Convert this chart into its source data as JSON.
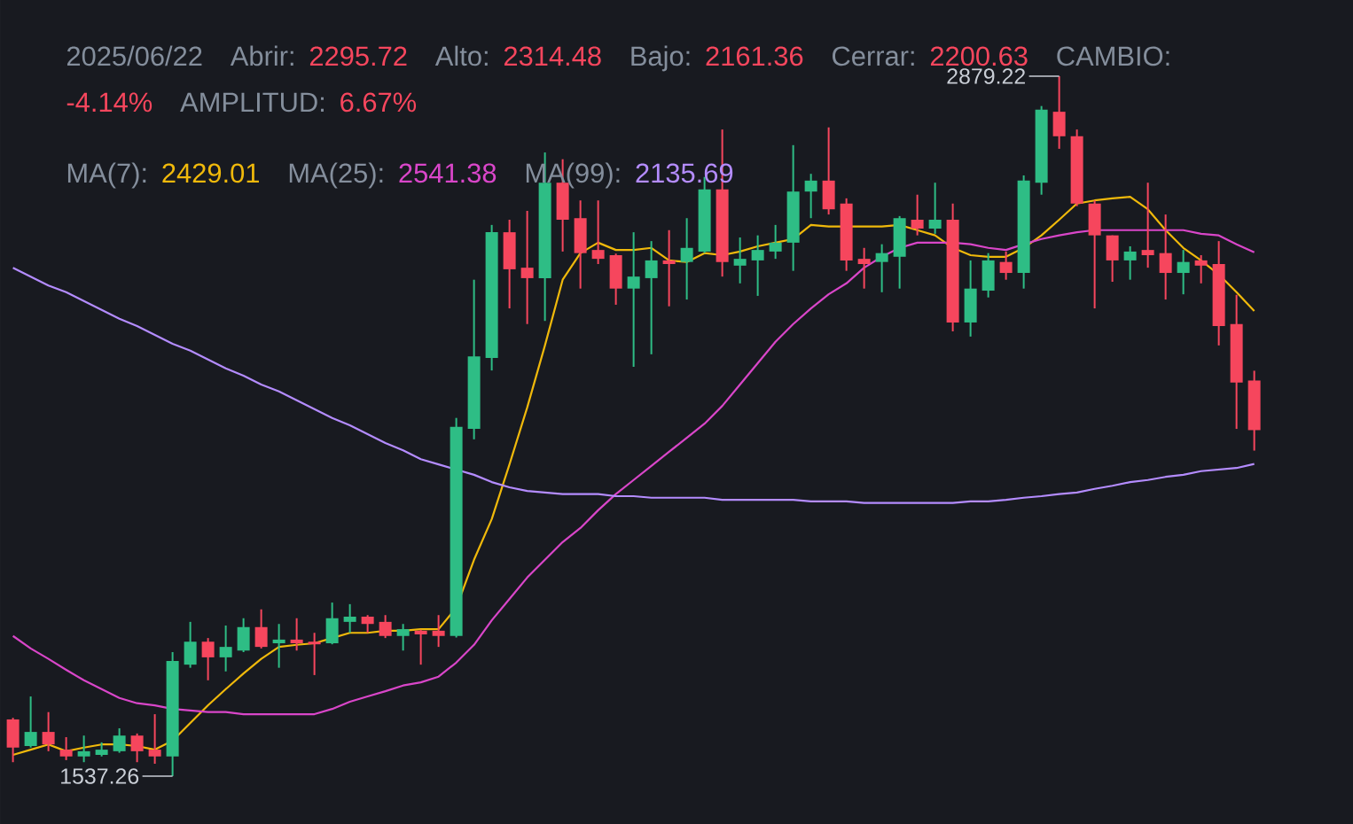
{
  "chart_data": {
    "type": "candlestick",
    "categories": [
      null,
      null,
      null,
      null,
      null,
      null,
      null,
      null,
      null,
      null,
      null,
      null,
      null,
      null,
      null,
      null,
      null,
      null,
      null,
      null,
      null,
      null,
      null,
      null,
      null,
      null,
      null,
      null,
      null,
      null,
      null,
      null,
      null,
      null,
      null,
      null,
      null,
      null,
      null,
      null,
      null,
      null,
      null,
      null,
      null,
      null,
      null,
      null,
      null,
      null,
      null,
      null,
      null,
      null,
      null,
      null,
      null,
      null,
      null,
      null,
      null,
      null,
      null,
      null,
      null,
      null,
      null,
      null,
      null,
      null,
      null
    ],
    "ohlc": [
      [
        1646,
        1649,
        1564,
        1592
      ],
      [
        1595,
        1690,
        1592,
        1622
      ],
      [
        1622,
        1660,
        1585,
        1598
      ],
      [
        1588,
        1612,
        1568,
        1575
      ],
      [
        1575,
        1615,
        1564,
        1585
      ],
      [
        1578,
        1602,
        1575,
        1588
      ],
      [
        1585,
        1629,
        1582,
        1615
      ],
      [
        1615,
        1619,
        1564,
        1585
      ],
      [
        1588,
        1656,
        1561,
        1575
      ],
      [
        1575,
        1775,
        1537.26,
        1758
      ],
      [
        1751,
        1833,
        1745,
        1795
      ],
      [
        1795,
        1802,
        1721,
        1765
      ],
      [
        1765,
        1826,
        1738,
        1785
      ],
      [
        1778,
        1840,
        1775,
        1823
      ],
      [
        1823,
        1857,
        1782,
        1785
      ],
      [
        1792,
        1829,
        1745,
        1799
      ],
      [
        1799,
        1840,
        1778,
        1792
      ],
      [
        1795,
        1812,
        1731,
        1790
      ],
      [
        1792,
        1870,
        1790,
        1840
      ],
      [
        1833,
        1867,
        1812,
        1843
      ],
      [
        1843,
        1846,
        1812,
        1829
      ],
      [
        1833,
        1846,
        1802,
        1806
      ],
      [
        1806,
        1829,
        1778,
        1819
      ],
      [
        1816,
        1818,
        1751,
        1809
      ],
      [
        1816,
        1846,
        1785,
        1806
      ],
      [
        1806,
        2224,
        1803,
        2207
      ],
      [
        2203,
        2489,
        2183,
        2342
      ],
      [
        2339,
        2594,
        2315,
        2580
      ],
      [
        2580,
        2604,
        2434,
        2509
      ],
      [
        2512,
        2621,
        2404,
        2492
      ],
      [
        2492,
        2733,
        2410,
        2675
      ],
      [
        2675,
        2720,
        2543,
        2604
      ],
      [
        2607,
        2641,
        2472,
        2540
      ],
      [
        2546,
        2641,
        2519,
        2529
      ],
      [
        2536,
        2539,
        2441,
        2472
      ],
      [
        2472,
        2580,
        2322,
        2495
      ],
      [
        2492,
        2563,
        2346,
        2526
      ],
      [
        2526,
        2584,
        2438,
        2519
      ],
      [
        2523,
        2607,
        2451,
        2550
      ],
      [
        2543,
        2686,
        2540,
        2662
      ],
      [
        2662,
        2777,
        2495,
        2523
      ],
      [
        2516,
        2570,
        2482,
        2529
      ],
      [
        2526,
        2574,
        2458,
        2546
      ],
      [
        2543,
        2594,
        2529,
        2560
      ],
      [
        2560,
        2747,
        2506,
        2658
      ],
      [
        2658,
        2692,
        2607,
        2679
      ],
      [
        2679,
        2781,
        2614,
        2624
      ],
      [
        2635,
        2645,
        2506,
        2526
      ],
      [
        2529,
        2550,
        2472,
        2519
      ],
      [
        2523,
        2557,
        2465,
        2540
      ],
      [
        2533,
        2611,
        2472,
        2607
      ],
      [
        2604,
        2652,
        2574,
        2587
      ],
      [
        2587,
        2675,
        2577,
        2604
      ],
      [
        2604,
        2635,
        2390,
        2407
      ],
      [
        2407,
        2526,
        2380,
        2472
      ],
      [
        2468,
        2540,
        2455,
        2526
      ],
      [
        2523,
        2543,
        2489,
        2502
      ],
      [
        2502,
        2689,
        2472,
        2679
      ],
      [
        2675,
        2822,
        2652,
        2815
      ],
      [
        2811,
        2879.22,
        2740,
        2764
      ],
      [
        2764,
        2777,
        2630,
        2635
      ],
      [
        2635,
        2641,
        2434,
        2574
      ],
      [
        2574,
        2574,
        2485,
        2526
      ],
      [
        2526,
        2553,
        2489,
        2543
      ],
      [
        2546,
        2675,
        2512,
        2536
      ],
      [
        2540,
        2614,
        2451,
        2502
      ],
      [
        2502,
        2546,
        2461,
        2523
      ],
      [
        2526,
        2536,
        2482,
        2516
      ],
      [
        2519,
        2563,
        2363,
        2400
      ],
      [
        2404,
        2460,
        2203,
        2292
      ],
      [
        2295.72,
        2314.48,
        2161.36,
        2200.63
      ]
    ],
    "series": [
      {
        "type": "line",
        "color": "#f0b90b",
        "values": [
          1578,
          1588,
          1598,
          1585,
          1592,
          1598,
          1598,
          1595,
          1588,
          1605,
          1639,
          1673,
          1704,
          1734,
          1762,
          1785,
          1789,
          1792,
          1802,
          1812,
          1812,
          1816,
          1816,
          1819,
          1819,
          1860,
          1952,
          2030,
          2135,
          2244,
          2363,
          2489,
          2540,
          2560,
          2546,
          2546,
          2550,
          2526,
          2523,
          2540,
          2536,
          2543,
          2553,
          2560,
          2567,
          2594,
          2591,
          2591,
          2591,
          2591,
          2594,
          2584,
          2574,
          2550,
          2536,
          2533,
          2533,
          2550,
          2574,
          2604,
          2635,
          2641,
          2645,
          2648,
          2624,
          2584,
          2550,
          2526,
          2499,
          2465,
          2429.01
        ]
      },
      {
        "type": "line",
        "color": "#d946c9",
        "values": [
          1806,
          1782,
          1762,
          1741,
          1721,
          1704,
          1687,
          1677,
          1673,
          1666,
          1663,
          1660,
          1660,
          1656,
          1656,
          1656,
          1656,
          1656,
          1666,
          1680,
          1690,
          1700,
          1711,
          1717,
          1728,
          1755,
          1789,
          1836,
          1877,
          1918,
          1952,
          1986,
          2013,
          2047,
          2078,
          2105,
          2132,
          2159,
          2186,
          2213,
          2247,
          2288,
          2329,
          2370,
          2404,
          2434,
          2461,
          2482,
          2512,
          2533,
          2550,
          2560,
          2560,
          2560,
          2557,
          2550,
          2546,
          2557,
          2567,
          2574,
          2580,
          2584,
          2584,
          2584,
          2584,
          2584,
          2584,
          2577,
          2574,
          2557,
          2541.38
        ]
      },
      {
        "type": "line",
        "color": "#b48cff",
        "values": [
          2512,
          2495,
          2478,
          2465,
          2448,
          2431,
          2414,
          2400,
          2383,
          2366,
          2353,
          2336,
          2319,
          2305,
          2288,
          2275,
          2258,
          2241,
          2224,
          2210,
          2193,
          2176,
          2162,
          2145,
          2135,
          2125,
          2115,
          2101,
          2091,
          2084,
          2081,
          2078,
          2078,
          2078,
          2074,
          2074,
          2071,
          2071,
          2071,
          2071,
          2067,
          2067,
          2067,
          2067,
          2067,
          2064,
          2064,
          2064,
          2061,
          2061,
          2061,
          2061,
          2061,
          2061,
          2064,
          2064,
          2067,
          2071,
          2074,
          2078,
          2081,
          2088,
          2094,
          2101,
          2105,
          2111,
          2115,
          2122,
          2125,
          2128,
          2135.69
        ]
      }
    ],
    "annotations": [
      "2025/06/22",
      "Abrir:",
      "2295.72",
      "Alto:",
      "2314.48",
      "Bajo:",
      "2161.36",
      "Cerrar:",
      "2200.63",
      "CAMBIO:",
      "-4.14%",
      "AMPLITUD:",
      "6.67%",
      "MA(7):",
      "2429.01",
      "MA(25):",
      "2541.38",
      "MA(99):",
      "2135.69",
      "2879.22",
      "1537.26"
    ]
  }
}
